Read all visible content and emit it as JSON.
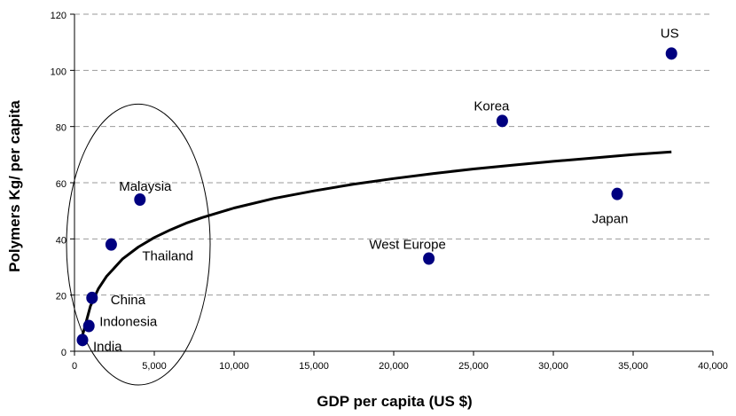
{
  "chart_data": {
    "type": "scatter",
    "title": "",
    "xlabel": "GDP per capita (US $)",
    "ylabel": "Polymers Kg/ per capita",
    "xlim": [
      0,
      40000
    ],
    "ylim": [
      0,
      120
    ],
    "xticks": [
      0,
      5000,
      10000,
      15000,
      20000,
      25000,
      30000,
      35000,
      40000
    ],
    "xtick_labels": [
      "0",
      "5,000",
      "10,000",
      "15,000",
      "20,000",
      "25,000",
      "30,000",
      "35,000",
      "40,000"
    ],
    "yticks": [
      0,
      20,
      40,
      60,
      80,
      100,
      120
    ],
    "ytick_labels": [
      "0",
      "20",
      "40",
      "60",
      "80",
      "100",
      "120"
    ],
    "grid": "horizontal-dashed",
    "legend": "none",
    "point_color": "#000080",
    "curve_color": "#000000",
    "points": [
      {
        "label": "US",
        "x": 37400,
        "y": 106
      },
      {
        "label": "Korea",
        "x": 26800,
        "y": 82
      },
      {
        "label": "Japan",
        "x": 34000,
        "y": 56
      },
      {
        "label": "West Europe",
        "x": 22200,
        "y": 33
      },
      {
        "label": "Malaysia",
        "x": 4100,
        "y": 54
      },
      {
        "label": "Thailand",
        "x": 2300,
        "y": 38
      },
      {
        "label": "China",
        "x": 1100,
        "y": 19
      },
      {
        "label": "Indonesia",
        "x": 900,
        "y": 9
      },
      {
        "label": "India",
        "x": 500,
        "y": 4
      }
    ],
    "trend_curve": {
      "type": "logarithmic",
      "x": [
        500,
        1000,
        1500,
        2000,
        3000,
        4000,
        5000,
        6000,
        7000,
        8000,
        10000,
        12500,
        15000,
        17500,
        20000,
        22500,
        25000,
        27500,
        30000,
        32500,
        35000,
        37400
      ],
      "y": [
        5.6,
        16.1,
        22.3,
        26.6,
        32.8,
        37.1,
        40.5,
        43.2,
        45.6,
        47.6,
        51.0,
        54.4,
        57.1,
        59.5,
        61.5,
        63.3,
        64.9,
        66.3,
        67.6,
        68.8,
        70.0,
        71.0
      ]
    },
    "annotation_ellipse": {
      "cx": 4000,
      "cy": 38,
      "rx": 4500,
      "ry": 50
    }
  }
}
